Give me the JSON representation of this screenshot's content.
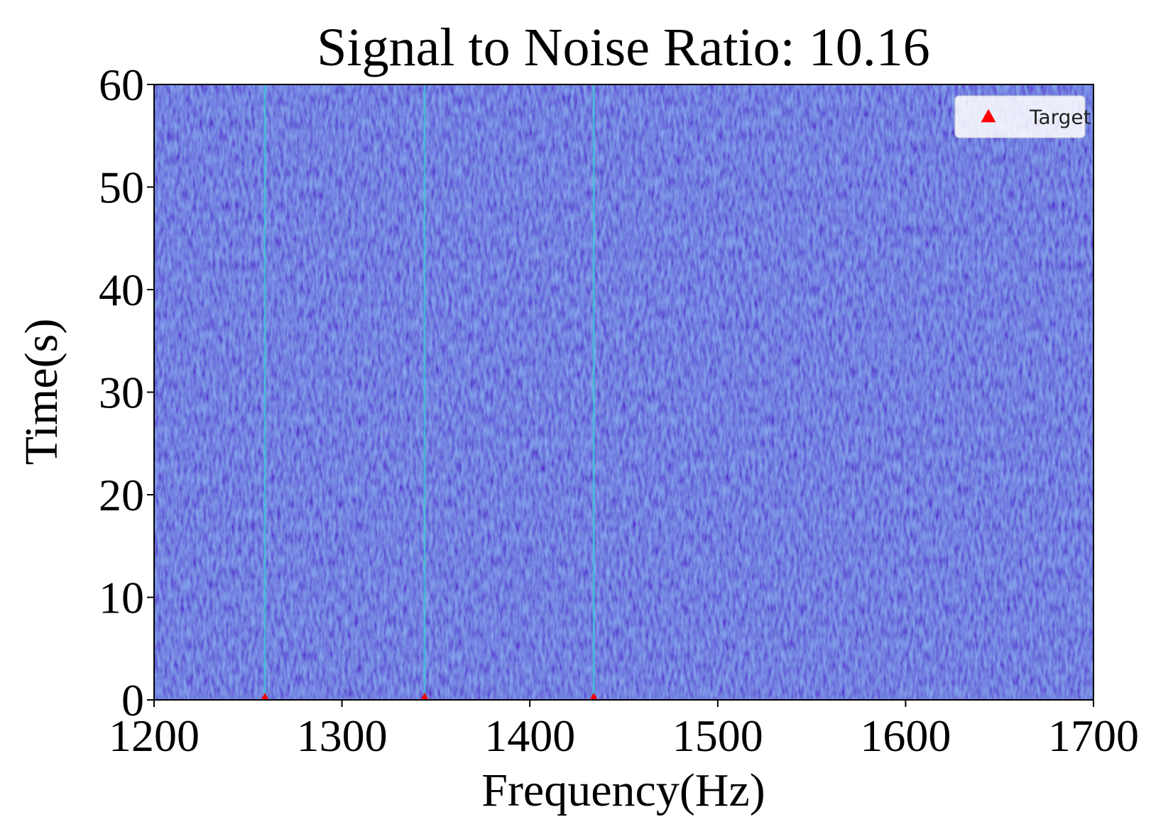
{
  "chart_data": {
    "type": "scatter",
    "title": "Signal to Noise Ratio: 10.16",
    "x_label": "Frequency(Hz)",
    "y_label": "Time(s)",
    "xlim": [
      1200,
      1700
    ],
    "ylim": [
      0,
      60
    ],
    "xticks": [
      1200,
      1300,
      1400,
      1500,
      1600,
      1700
    ],
    "yticks": [
      0,
      10,
      20,
      30,
      40,
      50,
      60
    ],
    "series": [
      {
        "name": "Target",
        "color": "#ff0000",
        "x": [
          1259,
          1344,
          1434
        ],
        "values": [
          0,
          0,
          0
        ]
      }
    ],
    "legend": "upper right"
  }
}
